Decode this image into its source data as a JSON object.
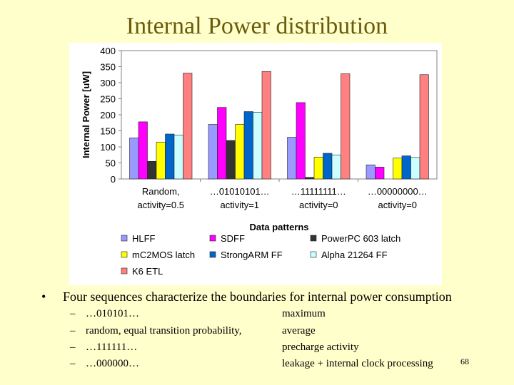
{
  "slide": {
    "title": "Internal Power distribution",
    "bullet": "Four sequences characterize the boundaries for internal power consumption",
    "bullet_symbol": "•",
    "dash_symbol": "–",
    "sub_items": [
      {
        "left": "…010101…",
        "right": "maximum"
      },
      {
        "left": "random, equal transition probability,",
        "right": "average"
      },
      {
        "left": "…111111…",
        "right": "precharge activity"
      },
      {
        "left": "…000000…",
        "right": "leakage + internal clock processing"
      }
    ],
    "page_number": "68"
  },
  "chart_data": {
    "type": "bar",
    "title": "",
    "ylabel": "Internal Power [uW]",
    "xlabel": "Data patterns",
    "ylim": [
      0,
      400
    ],
    "yticks": [
      0,
      50,
      100,
      150,
      200,
      250,
      300,
      350,
      400
    ],
    "grid": false,
    "legend_position": "bottom",
    "categories": [
      [
        "Random,",
        "activity=0.5"
      ],
      [
        "…01010101…",
        "activity=1"
      ],
      [
        "…11111111…",
        "activity=0"
      ],
      [
        "…00000000…",
        "activity=0"
      ]
    ],
    "series": [
      {
        "name": "HLFF",
        "color": "#9999ff",
        "values": [
          128,
          170,
          130,
          44
        ]
      },
      {
        "name": "SDFF",
        "color": "#ff00ff",
        "values": [
          178,
          223,
          238,
          37
        ]
      },
      {
        "name": "PowerPC 603 latch",
        "color": "#333333",
        "values": [
          55,
          120,
          5,
          0
        ]
      },
      {
        "name": "mC2MOS latch",
        "color": "#ffff00",
        "values": [
          115,
          170,
          68,
          65
        ]
      },
      {
        "name": "StrongARM FF",
        "color": "#0066cc",
        "values": [
          140,
          210,
          80,
          72
        ]
      },
      {
        "name": "Alpha 21264 FF",
        "color": "#ccffff",
        "values": [
          137,
          208,
          75,
          67
        ]
      },
      {
        "name": "K6 ETL",
        "color": "#ff8080",
        "values": [
          330,
          335,
          328,
          325
        ]
      }
    ]
  }
}
